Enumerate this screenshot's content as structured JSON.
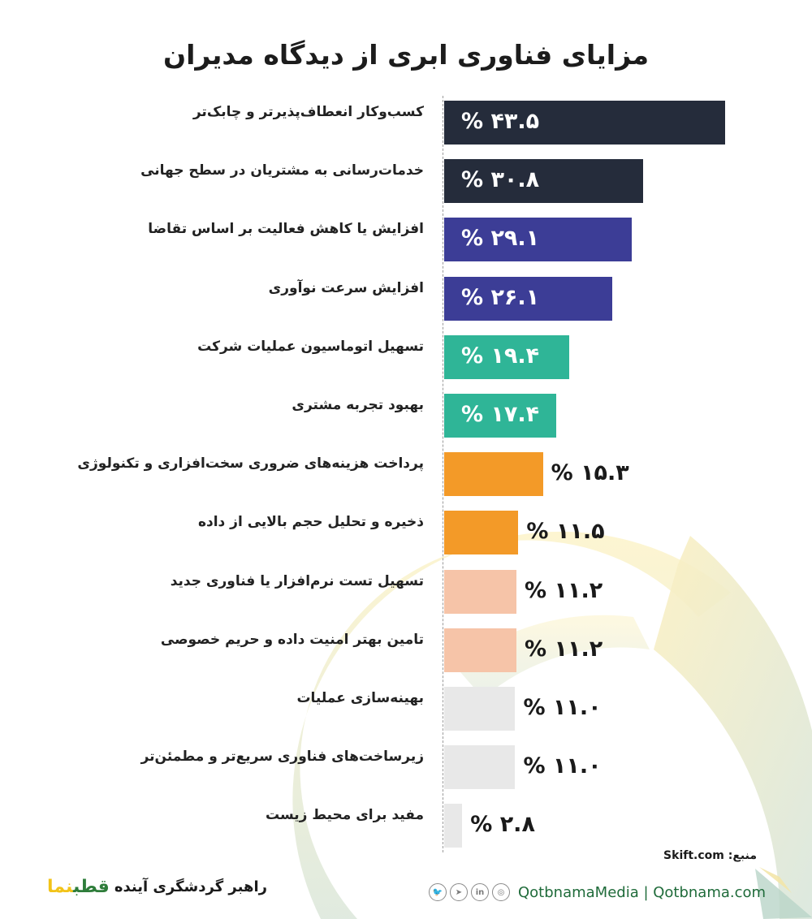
{
  "title": "مزایای فناوری ابری از دیدگاه مدیران",
  "colors": {
    "navy": "#252c3b",
    "indigo": "#3c3d96",
    "teal": "#2fb597",
    "orange": "#f39a28",
    "peach": "#f6c4a8",
    "lightgray": "#e8e8e8"
  },
  "rows": [
    {
      "label": "کسب‌وکار انعطاف‌پذیرتر و چابک‌تر",
      "value_text": "% ۴۳.۵",
      "value": 43.5,
      "color": "#252c3b",
      "inside": true
    },
    {
      "label": "خدمات‌رسانی به مشتریان در سطح جهانی",
      "value_text": "% ۳۰.۸",
      "value": 30.8,
      "color": "#252c3b",
      "inside": true
    },
    {
      "label": "افزایش یا کاهش فعالیت بر اساس تقاضا",
      "value_text": "% ۲۹.۱",
      "value": 29.1,
      "color": "#3c3d96",
      "inside": true
    },
    {
      "label": "افزایش سرعت نوآوری",
      "value_text": "% ۲۶.۱",
      "value": 26.1,
      "color": "#3c3d96",
      "inside": true
    },
    {
      "label": "تسهیل اتوماسیون عملیات شرکت",
      "value_text": "% ۱۹.۴",
      "value": 19.4,
      "color": "#2fb597",
      "inside": true
    },
    {
      "label": "بهبود تجربه مشتری",
      "value_text": "% ۱۷.۴",
      "value": 17.4,
      "color": "#2fb597",
      "inside": true
    },
    {
      "label": "پرداخت هزینه‌های ضروری سخت‌افزاری و تکنولوژی",
      "value_text": "% ۱۵.۳",
      "value": 15.3,
      "color": "#f39a28",
      "inside": false
    },
    {
      "label": "ذخیره و تحلیل حجم بالایی از داده",
      "value_text": "% ۱۱.۵",
      "value": 11.5,
      "color": "#f39a28",
      "inside": false
    },
    {
      "label": "تسهیل تست نرم‌افزار یا فناوری جدید",
      "value_text": "% ۱۱.۲",
      "value": 11.2,
      "color": "#f6c4a8",
      "inside": false
    },
    {
      "label": "تامین بهتر امنیت داده و حریم خصوصی",
      "value_text": "% ۱۱.۲",
      "value": 11.2,
      "color": "#f6c4a8",
      "inside": false
    },
    {
      "label": "بهینه‌سازی عملیات",
      "value_text": "% ۱۱.۰",
      "value": 11.0,
      "color": "#e8e8e8",
      "inside": false
    },
    {
      "label": "زیرساخت‌های فناوری سریع‌تر و مطمئن‌تر",
      "value_text": "% ۱۱.۰",
      "value": 11.0,
      "color": "#e8e8e8",
      "inside": false
    },
    {
      "label": "مفید برای محیط زیست",
      "value_text": "% ۲.۸",
      "value": 2.8,
      "color": "#e8e8e8",
      "inside": false
    }
  ],
  "source": "Skift.com :منبع",
  "footer": {
    "social_icons": [
      "twitter-icon",
      "telegram-icon",
      "linkedin-icon",
      "instagram-icon"
    ],
    "links_text": "QotbnamaMedia | Qotbnama.com",
    "brand_tagline": "راهبر گردشگری آینده",
    "brand_logo": "قطب‌نما"
  },
  "chart_data": {
    "type": "bar",
    "orientation": "horizontal",
    "title": "مزایای فناوری ابری از دیدگاه مدیران",
    "categories": [
      "کسب‌وکار انعطاف‌پذیرتر و چابک‌تر",
      "خدمات‌رسانی به مشتریان در سطح جهانی",
      "افزایش یا کاهش فعالیت بر اساس تقاضا",
      "افزایش سرعت نوآوری",
      "تسهیل اتوماسیون عملیات شرکت",
      "بهبود تجربه مشتری",
      "پرداخت هزینه‌های ضروری سخت‌افزاری و تکنولوژی",
      "ذخیره و تحلیل حجم بالایی از داده",
      "تسهیل تست نرم‌افزار یا فناوری جدید",
      "تامین بهتر امنیت داده و حریم خصوصی",
      "بهینه‌سازی عملیات",
      "زیرساخت‌های فناوری سریع‌تر و مطمئن‌تر",
      "مفید برای محیط زیست"
    ],
    "values": [
      43.5,
      30.8,
      29.1,
      26.1,
      19.4,
      17.4,
      15.3,
      11.5,
      11.2,
      11.2,
      11.0,
      11.0,
      2.8
    ],
    "unit": "%",
    "xlabel": "",
    "ylabel": "",
    "grid": false,
    "legend": "none",
    "source": "Skift.com"
  }
}
